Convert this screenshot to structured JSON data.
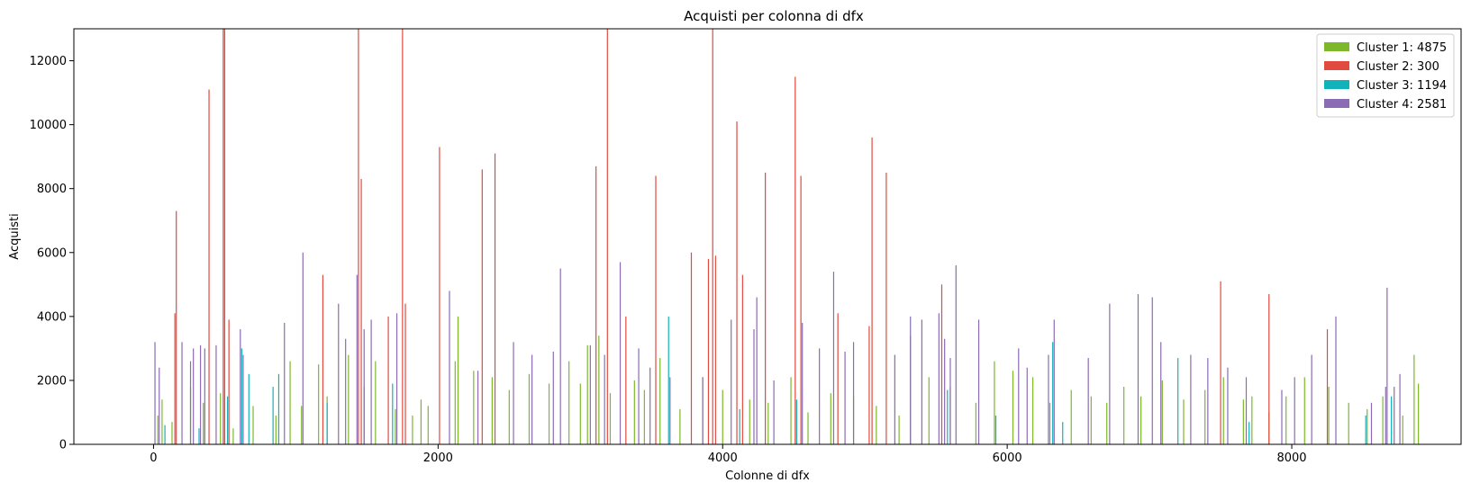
{
  "chart_data": {
    "type": "bar",
    "title": "Acquisti per colonna di dfx",
    "xlabel": "Colonne di dfx",
    "ylabel": "Acquisti",
    "xlim": [
      -560,
      9190
    ],
    "ylim": [
      0,
      13000
    ],
    "x_ticks": [
      0,
      2000,
      4000,
      6000,
      8000
    ],
    "y_ticks": [
      0,
      2000,
      4000,
      6000,
      8000,
      10000,
      12000
    ],
    "grid": false,
    "legend_position": "top-right",
    "series": [
      {
        "name": "Cluster 1: 4875",
        "color": "#7cb829",
        "points": [
          [
            30,
            900
          ],
          [
            60,
            1400
          ],
          [
            130,
            700
          ],
          [
            260,
            1800
          ],
          [
            350,
            1300
          ],
          [
            470,
            1600
          ],
          [
            560,
            500
          ],
          [
            700,
            1200
          ],
          [
            860,
            900
          ],
          [
            960,
            2600
          ],
          [
            1040,
            1200
          ],
          [
            1160,
            2500
          ],
          [
            1220,
            1500
          ],
          [
            1370,
            2800
          ],
          [
            1480,
            1800
          ],
          [
            1560,
            2600
          ],
          [
            1700,
            1100
          ],
          [
            1820,
            900
          ],
          [
            1880,
            1400
          ],
          [
            1930,
            1200
          ],
          [
            2120,
            2600
          ],
          [
            2140,
            4000
          ],
          [
            2250,
            2300
          ],
          [
            2380,
            2100
          ],
          [
            2500,
            1700
          ],
          [
            2640,
            2200
          ],
          [
            2780,
            1900
          ],
          [
            2920,
            2600
          ],
          [
            3000,
            1900
          ],
          [
            3050,
            3100
          ],
          [
            3130,
            3400
          ],
          [
            3210,
            1600
          ],
          [
            3380,
            2000
          ],
          [
            3450,
            1700
          ],
          [
            3560,
            2700
          ],
          [
            3700,
            1100
          ],
          [
            3860,
            2100
          ],
          [
            4000,
            1700
          ],
          [
            4190,
            1400
          ],
          [
            4320,
            1300
          ],
          [
            4480,
            2100
          ],
          [
            4600,
            1000
          ],
          [
            4760,
            1600
          ],
          [
            4920,
            1500
          ],
          [
            5080,
            1200
          ],
          [
            5240,
            900
          ],
          [
            5320,
            3400
          ],
          [
            5450,
            2100
          ],
          [
            5600,
            1800
          ],
          [
            5780,
            1300
          ],
          [
            5910,
            2600
          ],
          [
            6040,
            2300
          ],
          [
            6180,
            2100
          ],
          [
            6300,
            1300
          ],
          [
            6450,
            1700
          ],
          [
            6590,
            1500
          ],
          [
            6700,
            1300
          ],
          [
            6820,
            1800
          ],
          [
            6940,
            1500
          ],
          [
            7090,
            2000
          ],
          [
            7240,
            1400
          ],
          [
            7390,
            1700
          ],
          [
            7520,
            2100
          ],
          [
            7660,
            1400
          ],
          [
            7720,
            1500
          ],
          [
            7840,
            1000
          ],
          [
            7960,
            1500
          ],
          [
            8090,
            2100
          ],
          [
            8260,
            1800
          ],
          [
            8400,
            1300
          ],
          [
            8530,
            1100
          ],
          [
            8640,
            1500
          ],
          [
            8780,
            900
          ],
          [
            8860,
            2800
          ],
          [
            8890,
            1900
          ]
        ]
      },
      {
        "name": "Cluster 2: 300",
        "color": "#e14a3f",
        "points": [
          [
            150,
            4100
          ],
          [
            160,
            7300
          ],
          [
            390,
            11100
          ],
          [
            490,
            13000
          ],
          [
            500,
            13000
          ],
          [
            530,
            3900
          ],
          [
            1190,
            5300
          ],
          [
            1440,
            13000
          ],
          [
            1460,
            8300
          ],
          [
            1650,
            4000
          ],
          [
            1750,
            13000
          ],
          [
            1770,
            4400
          ],
          [
            2010,
            9300
          ],
          [
            2310,
            8600
          ],
          [
            2400,
            9100
          ],
          [
            3110,
            8700
          ],
          [
            3190,
            13000
          ],
          [
            3320,
            4000
          ],
          [
            3530,
            8400
          ],
          [
            3780,
            6000
          ],
          [
            3900,
            5800
          ],
          [
            3930,
            13000
          ],
          [
            3950,
            5900
          ],
          [
            4100,
            10100
          ],
          [
            4140,
            5300
          ],
          [
            4300,
            8500
          ],
          [
            4510,
            11500
          ],
          [
            4550,
            8400
          ],
          [
            4810,
            4100
          ],
          [
            5030,
            3700
          ],
          [
            5050,
            9600
          ],
          [
            5150,
            8500
          ],
          [
            5540,
            5000
          ],
          [
            7500,
            5100
          ],
          [
            7840,
            4700
          ],
          [
            8250,
            3600
          ]
        ]
      },
      {
        "name": "Cluster 3: 1194",
        "color": "#12b2ba",
        "points": [
          [
            80,
            600
          ],
          [
            320,
            500
          ],
          [
            520,
            1500
          ],
          [
            620,
            3000
          ],
          [
            670,
            2200
          ],
          [
            840,
            1800
          ],
          [
            880,
            2200
          ],
          [
            1220,
            1300
          ],
          [
            1680,
            1900
          ],
          [
            3620,
            4000
          ],
          [
            4120,
            1100
          ],
          [
            4520,
            1400
          ],
          [
            5580,
            1700
          ],
          [
            5920,
            900
          ],
          [
            6320,
            3200
          ],
          [
            6390,
            700
          ],
          [
            7200,
            2700
          ],
          [
            7700,
            700
          ],
          [
            8520,
            900
          ],
          [
            8700,
            1500
          ]
        ]
      },
      {
        "name": "Cluster 4: 2581",
        "color": "#8b6bb3",
        "points": [
          [
            10,
            3200
          ],
          [
            40,
            2400
          ],
          [
            200,
            3200
          ],
          [
            260,
            2600
          ],
          [
            280,
            3000
          ],
          [
            330,
            3100
          ],
          [
            360,
            3000
          ],
          [
            440,
            3100
          ],
          [
            610,
            3600
          ],
          [
            630,
            2800
          ],
          [
            920,
            3800
          ],
          [
            1050,
            6000
          ],
          [
            1300,
            4400
          ],
          [
            1350,
            3300
          ],
          [
            1430,
            5300
          ],
          [
            1480,
            3600
          ],
          [
            1530,
            3900
          ],
          [
            1710,
            4100
          ],
          [
            2080,
            4800
          ],
          [
            2280,
            2300
          ],
          [
            2530,
            3200
          ],
          [
            2660,
            2800
          ],
          [
            2810,
            2900
          ],
          [
            2860,
            5500
          ],
          [
            3070,
            3100
          ],
          [
            3170,
            2800
          ],
          [
            3280,
            5700
          ],
          [
            3410,
            3000
          ],
          [
            3490,
            2400
          ],
          [
            3630,
            2100
          ],
          [
            3860,
            2100
          ],
          [
            4060,
            3900
          ],
          [
            4220,
            3600
          ],
          [
            4240,
            4600
          ],
          [
            4360,
            2000
          ],
          [
            4560,
            3800
          ],
          [
            4680,
            3000
          ],
          [
            4780,
            5400
          ],
          [
            4860,
            2900
          ],
          [
            4920,
            3200
          ],
          [
            5210,
            2800
          ],
          [
            5320,
            4000
          ],
          [
            5400,
            3900
          ],
          [
            5520,
            4100
          ],
          [
            5560,
            3300
          ],
          [
            5600,
            2700
          ],
          [
            5640,
            5600
          ],
          [
            5800,
            3900
          ],
          [
            6080,
            3000
          ],
          [
            6140,
            2400
          ],
          [
            6290,
            2800
          ],
          [
            6330,
            3900
          ],
          [
            6570,
            2700
          ],
          [
            6720,
            4400
          ],
          [
            6920,
            4700
          ],
          [
            7020,
            4600
          ],
          [
            7080,
            3200
          ],
          [
            7290,
            2800
          ],
          [
            7410,
            2700
          ],
          [
            7550,
            2400
          ],
          [
            7680,
            2100
          ],
          [
            7930,
            1700
          ],
          [
            8020,
            2100
          ],
          [
            8140,
            2800
          ],
          [
            8310,
            4000
          ],
          [
            8560,
            1300
          ],
          [
            8660,
            1800
          ],
          [
            8670,
            4900
          ],
          [
            8720,
            1800
          ],
          [
            8760,
            2200
          ]
        ]
      }
    ]
  }
}
